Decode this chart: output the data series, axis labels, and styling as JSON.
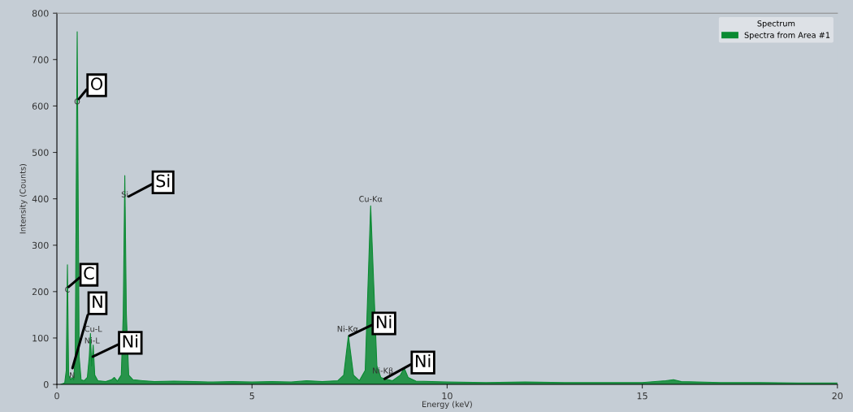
{
  "chart_data": {
    "type": "area",
    "xlabel": "Energy (keV)",
    "ylabel": "Intensity (Counts)",
    "legend_title": "Spectrum",
    "xlim": [
      0,
      20
    ],
    "xticks": [
      0,
      5,
      10,
      15,
      20
    ],
    "ylim": [
      0,
      800
    ],
    "yticks": [
      0,
      100,
      200,
      300,
      400,
      500,
      600,
      700,
      800
    ],
    "grid": false,
    "legend": "top right",
    "series": [
      {
        "name": "Spectra from Area #1",
        "color": "#0a8a32",
        "x": [
          0.1,
          0.2,
          0.24,
          0.27,
          0.3,
          0.35,
          0.39,
          0.43,
          0.47,
          0.52,
          0.57,
          0.62,
          0.7,
          0.78,
          0.83,
          0.86,
          0.89,
          0.93,
          0.97,
          1.05,
          1.25,
          1.4,
          1.47,
          1.55,
          1.65,
          1.7,
          1.74,
          1.78,
          1.84,
          1.95,
          2.2,
          2.5,
          3.0,
          3.5,
          4.0,
          4.5,
          5.0,
          5.5,
          6.0,
          6.4,
          6.8,
          7.2,
          7.35,
          7.47,
          7.6,
          7.75,
          7.9,
          8.04,
          8.2,
          8.3,
          8.4,
          8.6,
          8.8,
          8.9,
          9.0,
          9.2,
          10,
          11,
          12,
          13,
          14,
          15,
          15.6,
          15.8,
          16.0,
          17,
          18,
          19,
          20
        ],
        "values": [
          0,
          3,
          30,
          258,
          20,
          10,
          15,
          10,
          60,
          760,
          60,
          10,
          8,
          15,
          60,
          110,
          40,
          85,
          20,
          8,
          6,
          10,
          15,
          7,
          20,
          150,
          450,
          150,
          20,
          10,
          8,
          6,
          7,
          6,
          5,
          6,
          5,
          6,
          5,
          8,
          6,
          8,
          20,
          105,
          20,
          8,
          30,
          385,
          40,
          15,
          12,
          8,
          20,
          35,
          15,
          7,
          5,
          4,
          5,
          4,
          4,
          4,
          8,
          10,
          6,
          4,
          4,
          3,
          3
        ]
      }
    ],
    "annotations": [
      {
        "text": "O",
        "x": 0.52,
        "y": 600
      },
      {
        "text": "Si",
        "x": 1.74,
        "y": 400
      },
      {
        "text": "C",
        "x": 0.27,
        "y": 195
      },
      {
        "text": "N",
        "x": 0.39,
        "y": 10
      },
      {
        "text": "Cu-L",
        "x": 0.93,
        "y": 110
      },
      {
        "text": "Ni-L",
        "x": 0.9,
        "y": 85
      },
      {
        "text": "Cu-Kα",
        "x": 8.04,
        "y": 390
      },
      {
        "text": "Ni-Kα",
        "x": 7.45,
        "y": 110
      },
      {
        "text": "Ni-Kβ",
        "x": 8.35,
        "y": 20
      },
      {
        "text": "O",
        "x": 0.56,
        "y": 615
      },
      {
        "text": "Si",
        "x": 1.84,
        "y": 405
      },
      {
        "text": "C",
        "x": 0.3,
        "y": 210
      },
      {
        "text": "N",
        "x": 0.4,
        "y": 35
      },
      {
        "text": "Ni",
        "x": 0.92,
        "y": 60
      },
      {
        "text": "Ni",
        "x": 7.5,
        "y": 105
      },
      {
        "text": "Ni",
        "x": 8.4,
        "y": 12
      }
    ]
  }
}
